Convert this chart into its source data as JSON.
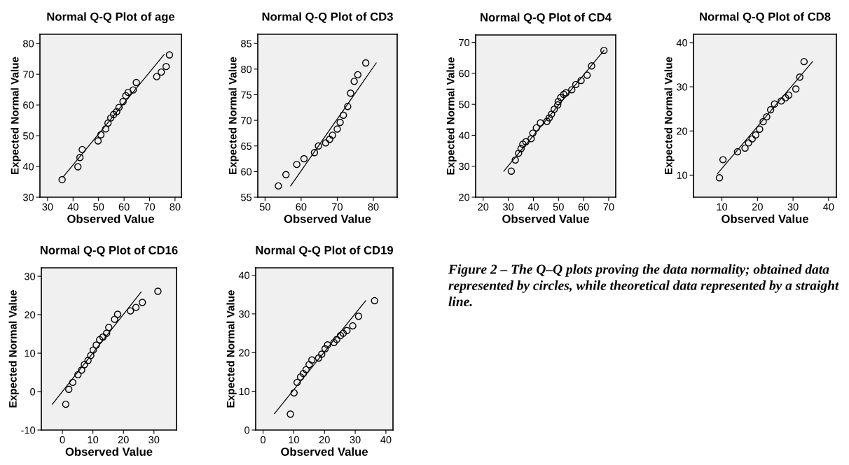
{
  "chart_data": [
    {
      "type": "scatter",
      "title": "Normal Q-Q Plot of age",
      "xlabel": "Observed Value",
      "ylabel": "Expected Normal Value",
      "xlim": [
        27,
        82.5
      ],
      "ylim": [
        30,
        83
      ],
      "xticks": [
        30,
        40,
        50,
        60,
        70,
        80
      ],
      "yticks": [
        30,
        40,
        50,
        60,
        70,
        80
      ],
      "series": [
        {
          "type": "scatter",
          "marker": "circle",
          "color": "#000000",
          "x": [
            35.7,
            41.9,
            42.7,
            43.6,
            49.8,
            50.9,
            52.8,
            53.7,
            54.8,
            55.9,
            57.1,
            58,
            59.6,
            60.7,
            61.6,
            63.6,
            64.8,
            72.8,
            74.6,
            76.5,
            77.8
          ],
          "values": [
            35.7,
            39.9,
            42.9,
            45.5,
            48.3,
            50.3,
            52.2,
            54.1,
            55.8,
            56.9,
            57.8,
            59.2,
            61.1,
            63,
            64.1,
            64.9,
            67.3,
            69.2,
            70.7,
            72.5,
            76.3
          ]
        },
        {
          "type": "line",
          "color": "#000000",
          "x": [
            36.2,
            75.7
          ],
          "values": [
            36.7,
            76.4
          ]
        }
      ]
    },
    {
      "type": "scatter",
      "title": "Normal Q-Q Plot of CD3",
      "xlabel": "Observed Value",
      "ylabel": "Expected Normal Value",
      "xlim": [
        48,
        86.6
      ],
      "ylim": [
        55,
        86.8
      ],
      "xticks": [
        50,
        60,
        70,
        80
      ],
      "yticks": [
        55,
        60,
        65,
        70,
        75,
        80,
        85
      ],
      "series": [
        {
          "type": "scatter",
          "marker": "circle",
          "color": "#000000",
          "x": [
            53.7,
            55.8,
            58.8,
            60.8,
            63.7,
            64.8,
            66.8,
            67.9,
            68.7,
            70.0,
            70.8,
            71.7,
            72.9,
            73.7,
            74.7,
            75.7,
            77.9
          ],
          "values": [
            57.2,
            59.4,
            61.4,
            62.5,
            63.7,
            65.0,
            65.6,
            66.3,
            67.1,
            68.3,
            69.6,
            71.0,
            72.7,
            75.3,
            77.6,
            78.9,
            81.2
          ]
        },
        {
          "type": "line",
          "color": "#000000",
          "x": [
            57.1,
            80.8
          ],
          "values": [
            57.2,
            81.2
          ]
        }
      ]
    },
    {
      "type": "scatter",
      "title": "Normal Q-Q Plot of CD4",
      "xlabel": "Observed Value",
      "ylabel": "Expected Normal Value",
      "xlim": [
        17,
        72.8
      ],
      "ylim": [
        20,
        72.4
      ],
      "xticks": [
        20,
        30,
        40,
        50,
        60,
        70
      ],
      "yticks": [
        20,
        30,
        40,
        50,
        60,
        70
      ],
      "series": [
        {
          "type": "scatter",
          "marker": "circle",
          "color": "#000000",
          "x": [
            31.2,
            32.8,
            34.1,
            35.1,
            35.8,
            37.0,
            39.1,
            39.8,
            41.2,
            42.8,
            45.4,
            46.3,
            47.2,
            48.3,
            49.7,
            49.9,
            50.9,
            52.1,
            53.0,
            55.3,
            56.9,
            59.0,
            61.4,
            63.2,
            68.1
          ],
          "values": [
            28.4,
            32.0,
            34.2,
            35.7,
            37.1,
            37.9,
            38.9,
            40.7,
            42.4,
            44.0,
            44.5,
            45.6,
            46.8,
            48.4,
            49.8,
            50.9,
            52.2,
            53.2,
            53.7,
            54.7,
            56.4,
            57.7,
            59.4,
            62.4,
            67.4
          ]
        },
        {
          "type": "line",
          "color": "#000000",
          "x": [
            28.2,
            68.1
          ],
          "values": [
            28.4,
            67.4
          ]
        }
      ]
    },
    {
      "type": "scatter",
      "title": "Normal Q-Q Plot of CD8",
      "xlabel": "Observed Value",
      "ylabel": "Expected Normal Value",
      "xlim": [
        2,
        42.2
      ],
      "ylim": [
        5,
        41.9
      ],
      "xticks": [
        10,
        20,
        30,
        40
      ],
      "yticks": [
        10,
        20,
        30,
        40
      ],
      "series": [
        {
          "type": "scatter",
          "marker": "circle",
          "color": "#000000",
          "x": [
            9.3,
            10.3,
            14.4,
            16.5,
            17.5,
            18.5,
            19.5,
            20.6,
            21.6,
            22.6,
            23.7,
            24.8,
            26.7,
            27.9,
            28.8,
            30.8,
            31.9,
            33.1
          ],
          "values": [
            9.4,
            13.5,
            15.3,
            16.1,
            17.3,
            18.2,
            19.1,
            20.4,
            22.1,
            23.2,
            24.8,
            26.1,
            26.8,
            27.5,
            28.1,
            29.5,
            32.2,
            35.7
          ]
        },
        {
          "type": "line",
          "color": "#000000",
          "x": [
            8.7,
            35.5
          ],
          "values": [
            10.3,
            35.7
          ]
        }
      ]
    },
    {
      "type": "scatter",
      "title": "Normal Q-Q Plot of CD16",
      "xlabel": "Observed Value",
      "ylabel": "Expected Normal Value",
      "xlim": [
        -6.9,
        37.4
      ],
      "ylim": [
        -10,
        32.2
      ],
      "xticks": [
        0,
        10,
        20,
        30
      ],
      "yticks": [
        -10,
        0,
        10,
        20,
        30
      ],
      "series": [
        {
          "type": "scatter",
          "marker": "circle",
          "color": "#000000",
          "x": [
            1.1,
            2.1,
            3.4,
            5.1,
            6.3,
            7.2,
            8.4,
            9.3,
            10.1,
            11.1,
            12.2,
            13.3,
            14.5,
            15.2,
            17.1,
            18.1,
            22.3,
            24.1,
            26.2,
            31.3
          ],
          "values": [
            -3.3,
            0.6,
            2.4,
            4.4,
            5.6,
            7.0,
            8.1,
            9.4,
            10.8,
            12.1,
            13.5,
            14.2,
            15.2,
            16.7,
            18.8,
            20.1,
            21.0,
            21.9,
            23.2,
            26.1
          ]
        },
        {
          "type": "line",
          "color": "#000000",
          "x": [
            -3.3,
            25.8
          ],
          "values": [
            -3.3,
            25.9
          ]
        }
      ]
    },
    {
      "type": "scatter",
      "title": "Normal Q-Q Plot of CD19",
      "xlabel": "Observed Value",
      "ylabel": "Expected Normal Value",
      "xlim": [
        -2.4,
        42.3
      ],
      "ylim": [
        0,
        41.9
      ],
      "xticks": [
        0,
        10,
        20,
        30,
        40
      ],
      "yticks": [
        0,
        10,
        20,
        30,
        40
      ],
      "series": [
        {
          "type": "scatter",
          "marker": "circle",
          "color": "#000000",
          "x": [
            8.9,
            10.1,
            11.1,
            12.2,
            13.1,
            14.0,
            15.0,
            15.9,
            18.1,
            19.1,
            20.2,
            21.0,
            23.1,
            24.0,
            25.2,
            26.1,
            27.3,
            29.2,
            31.1,
            36.3
          ],
          "values": [
            4.1,
            9.6,
            12.3,
            13.7,
            14.6,
            15.6,
            16.9,
            18.1,
            18.6,
            19.6,
            21.0,
            22.0,
            22.6,
            23.4,
            24.4,
            25.0,
            25.7,
            26.9,
            29.4,
            33.4
          ]
        },
        {
          "type": "line",
          "color": "#000000",
          "x": [
            3.7,
            33.4
          ],
          "values": [
            4.2,
            33.4
          ]
        }
      ]
    },
    {
      "type": "other",
      "annotations": [
        "Figure 2 – The Q–Q plots proving the data normality; obtained data represented by circles, while theoretical data represented by a straight line."
      ]
    }
  ]
}
